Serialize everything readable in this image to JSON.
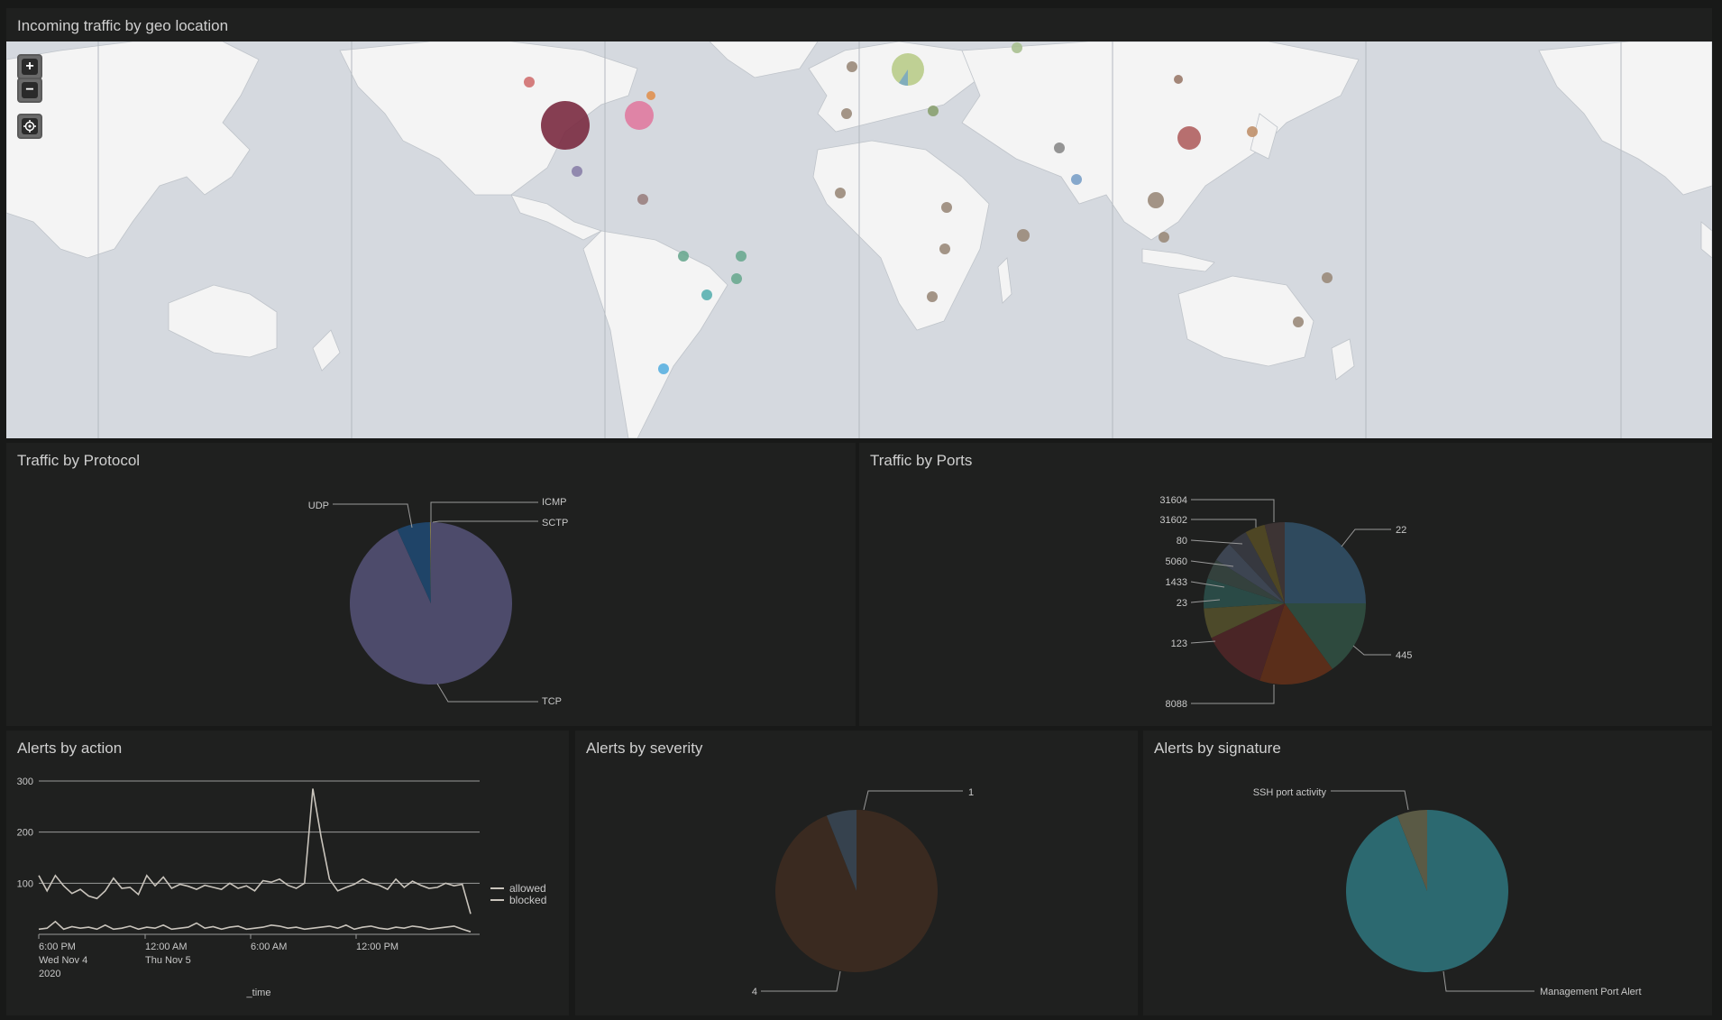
{
  "map": {
    "title": "Incoming traffic by geo location",
    "controls": {
      "zoom_in": "+",
      "zoom_out": "−",
      "locate": "locate-icon"
    },
    "colors": {
      "water": "#d5d9df",
      "land": "#f4f4f4"
    }
  },
  "protocol": {
    "title": "Traffic by Protocol",
    "chart_data": {
      "type": "pie",
      "slices": [
        {
          "label": "TCP",
          "value": 93.2,
          "color": "#4d4b6b"
        },
        {
          "label": "UDP",
          "value": 6.6,
          "color": "#1f4468"
        },
        {
          "label": "ICMP",
          "value": 0.1,
          "color": "#7a8a5a"
        },
        {
          "label": "SCTP",
          "value": 0.1,
          "color": "#8a6a4a"
        }
      ]
    }
  },
  "ports": {
    "title": "Traffic by Ports",
    "chart_data": {
      "type": "pie",
      "slices": [
        {
          "label": "22",
          "value": 25,
          "color": "#2f4a5e"
        },
        {
          "label": "445",
          "value": 15,
          "color": "#2e4a3e"
        },
        {
          "label": "8088",
          "value": 15,
          "color": "#5a2e1a"
        },
        {
          "label": "123",
          "value": 13,
          "color": "#4a2526"
        },
        {
          "label": "23",
          "value": 6,
          "color": "#4d4a2a"
        },
        {
          "label": "1433",
          "value": 6,
          "color": "#2a4a46"
        },
        {
          "label": "5060",
          "value": 4,
          "color": "#34413d"
        },
        {
          "label": "80",
          "value": 4,
          "color": "#3d4552"
        },
        {
          "label": "31602",
          "value": 4,
          "color": "#36383f"
        },
        {
          "label": "31604",
          "value": 4,
          "color": "#4e4624"
        },
        {
          "label": "",
          "value": 4,
          "color": "#3d3434"
        }
      ]
    }
  },
  "action": {
    "title": "Alerts by action",
    "chart_data": {
      "type": "line",
      "xlabel": "_time",
      "ylim": [
        0,
        300
      ],
      "yticks": [
        "300",
        "200",
        "100"
      ],
      "xticks": [
        {
          "line1": "6:00 PM",
          "line2": "Wed Nov 4",
          "line3": "2020"
        },
        {
          "line1": "12:00 AM",
          "line2": "Thu Nov 5",
          "line3": ""
        },
        {
          "line1": "6:00 AM",
          "line2": "",
          "line3": ""
        },
        {
          "line1": "12:00 PM",
          "line2": "",
          "line3": ""
        }
      ],
      "series": [
        {
          "name": "allowed",
          "values": [
            115,
            85,
            115,
            95,
            80,
            88,
            75,
            70,
            85,
            110,
            90,
            92,
            78,
            115,
            95,
            112,
            90,
            98,
            94,
            88,
            96,
            92,
            88,
            100,
            90,
            95,
            85,
            105,
            102,
            108,
            96,
            90,
            100,
            285,
            190,
            108,
            85,
            92,
            98,
            108,
            100,
            96,
            88,
            108,
            92,
            104,
            96,
            90,
            92,
            100,
            95,
            98,
            40
          ]
        },
        {
          "name": "blocked",
          "values": [
            10,
            12,
            25,
            10,
            15,
            12,
            14,
            10,
            18,
            10,
            12,
            16,
            10,
            14,
            12,
            18,
            10,
            12,
            14,
            22,
            12,
            15,
            10,
            14,
            16,
            10,
            12,
            14,
            18,
            16,
            12,
            14,
            10,
            12,
            14,
            16,
            12,
            18,
            10,
            14,
            16,
            12,
            10,
            14,
            12,
            16,
            14,
            10,
            12,
            14,
            16,
            10,
            5
          ]
        }
      ]
    },
    "legend": {
      "allowed": "allowed",
      "blocked": "blocked"
    }
  },
  "severity": {
    "title": "Alerts by severity",
    "chart_data": {
      "type": "pie",
      "slices": [
        {
          "label": "4",
          "value": 94,
          "color": "#3a2a20"
        },
        {
          "label": "1",
          "value": 6,
          "color": "#36424e"
        }
      ]
    }
  },
  "signature": {
    "title": "Alerts by signature",
    "chart_data": {
      "type": "pie",
      "slices": [
        {
          "label": "Management Port Alert",
          "value": 94,
          "color": "#2c6970"
        },
        {
          "label": "SSH port activity",
          "value": 6,
          "color": "#5a5a45"
        }
      ]
    }
  }
}
